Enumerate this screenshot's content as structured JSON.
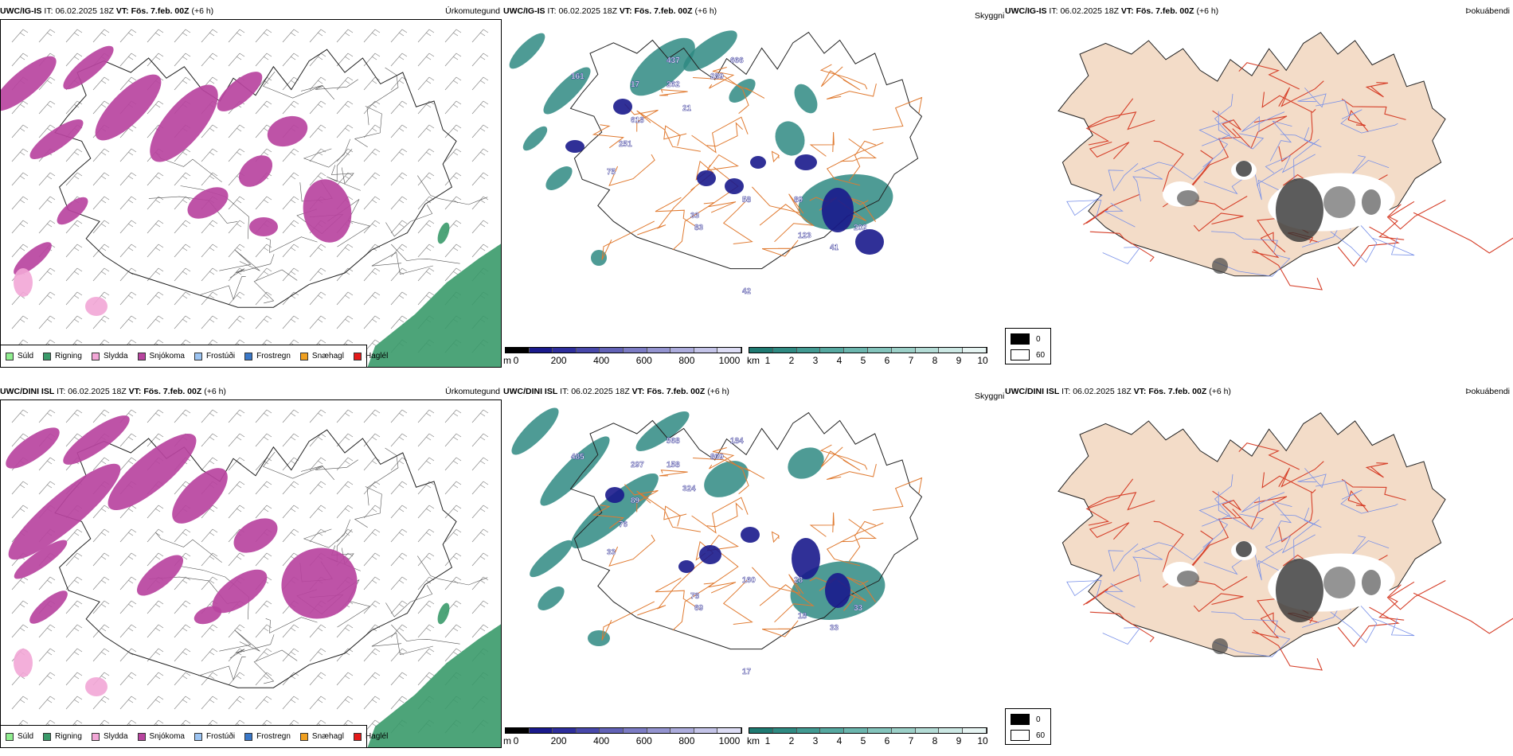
{
  "rows": [
    {
      "precip": {
        "model": "UWC/IG-IS",
        "it_label": "IT:",
        "it_value": "06.02.2025 18Z",
        "vt_label": "VT:",
        "vt_value": "Fös. 7.feb. 00Z",
        "offset": "(+6 h)",
        "panel_label": "Úrkomutegund"
      },
      "cloudbase": {
        "model": "UWC/IG-IS",
        "it_label": "IT:",
        "it_value": "06.02.2025 18Z",
        "vt_label": "VT:",
        "vt_value": "Fös. 7.feb. 00Z",
        "offset": "(+6 h)",
        "panel_label": "Skyggni",
        "numbers": [
          "161",
          "437",
          "666",
          "289",
          "17",
          "262",
          "21",
          "618",
          "251",
          "75",
          "33",
          "83",
          "58",
          "89",
          "123",
          "41",
          "202",
          "42"
        ]
      },
      "fog": {
        "model": "UWC/IG-IS",
        "it_label": "IT:",
        "it_value": "06.02.2025 18Z",
        "vt_label": "VT:",
        "vt_value": "Fös. 7.feb. 00Z",
        "offset": "(+6 h)",
        "panel_label": "Þokuábendi"
      }
    },
    {
      "precip": {
        "model": "UWC/DINI ISL",
        "it_label": "IT:",
        "it_value": "06.02.2025 18Z",
        "vt_label": "VT:",
        "vt_value": "Fös. 7.feb. 00Z",
        "offset": "(+6 h)",
        "panel_label": "Úrkomutegund"
      },
      "cloudbase": {
        "model": "UWC/DINI ISL",
        "it_label": "IT:",
        "it_value": "06.02.2025 18Z",
        "vt_label": "VT:",
        "vt_value": "Fös. 7.feb. 00Z",
        "offset": "(+6 h)",
        "panel_label": "Skyggni",
        "numbers": [
          "485",
          "568",
          "184",
          "869",
          "297",
          "158",
          "324",
          "89",
          "76",
          "33",
          "78",
          "69",
          "160",
          "28",
          "18",
          "33",
          "33",
          "17"
        ]
      },
      "fog": {
        "model": "UWC/DINI ISL",
        "it_label": "IT:",
        "it_value": "06.02.2025 18Z",
        "vt_label": "VT:",
        "vt_value": "Fös. 7.feb. 00Z",
        "offset": "(+6 h)",
        "panel_label": "Þokuábendi"
      }
    }
  ],
  "precip_legend": [
    {
      "label": "Súld",
      "color": "#90ee90"
    },
    {
      "label": "Rigning",
      "color": "#3a9a6a"
    },
    {
      "label": "Slydda",
      "color": "#f2a6d6"
    },
    {
      "label": "Snjókoma",
      "color": "#b8449f"
    },
    {
      "label": "Frostúði",
      "color": "#9cc4f2"
    },
    {
      "label": "Frostregn",
      "color": "#3a78c8"
    },
    {
      "label": "Snæhagl",
      "color": "#f0a020"
    },
    {
      "label": "Haglél",
      "color": "#e41a1a"
    }
  ],
  "ceiling_scale": {
    "unit": "m",
    "ticks": [
      "0",
      "200",
      "400",
      "600",
      "800",
      "1000"
    ],
    "colors": [
      "#000000",
      "#1a1a8c",
      "#2e2e9c",
      "#4848aa",
      "#6262b6",
      "#7c7cc4",
      "#9494d0",
      "#acacdc",
      "#c4c4e8",
      "#dcdcf4"
    ]
  },
  "visibility_scale": {
    "unit": "km",
    "ticks": [
      "1",
      "2",
      "3",
      "4",
      "5",
      "6",
      "7",
      "8",
      "9",
      "10"
    ],
    "colors": [
      "#1f7a72",
      "#2f8a82",
      "#429a92",
      "#56a8a0",
      "#6cb6ae",
      "#84c4bc",
      "#9cd0c8",
      "#b4dcd6",
      "#cce8e4",
      "#e6f4f2"
    ]
  },
  "fog_legend": {
    "high_value": "0",
    "low_value": "60",
    "high_color": "#000000",
    "low_color": "#ffffff"
  },
  "colors": {
    "snow": "#b8449f",
    "sleet": "#f2a6d6",
    "rain": "#3a9a6a",
    "teal": "#2f8a82",
    "land_fog": "#f3dcc8",
    "roads": "#e07a30",
    "roads_red": "#d6402a",
    "rivers": "#7890e8",
    "coast": "#222222"
  }
}
